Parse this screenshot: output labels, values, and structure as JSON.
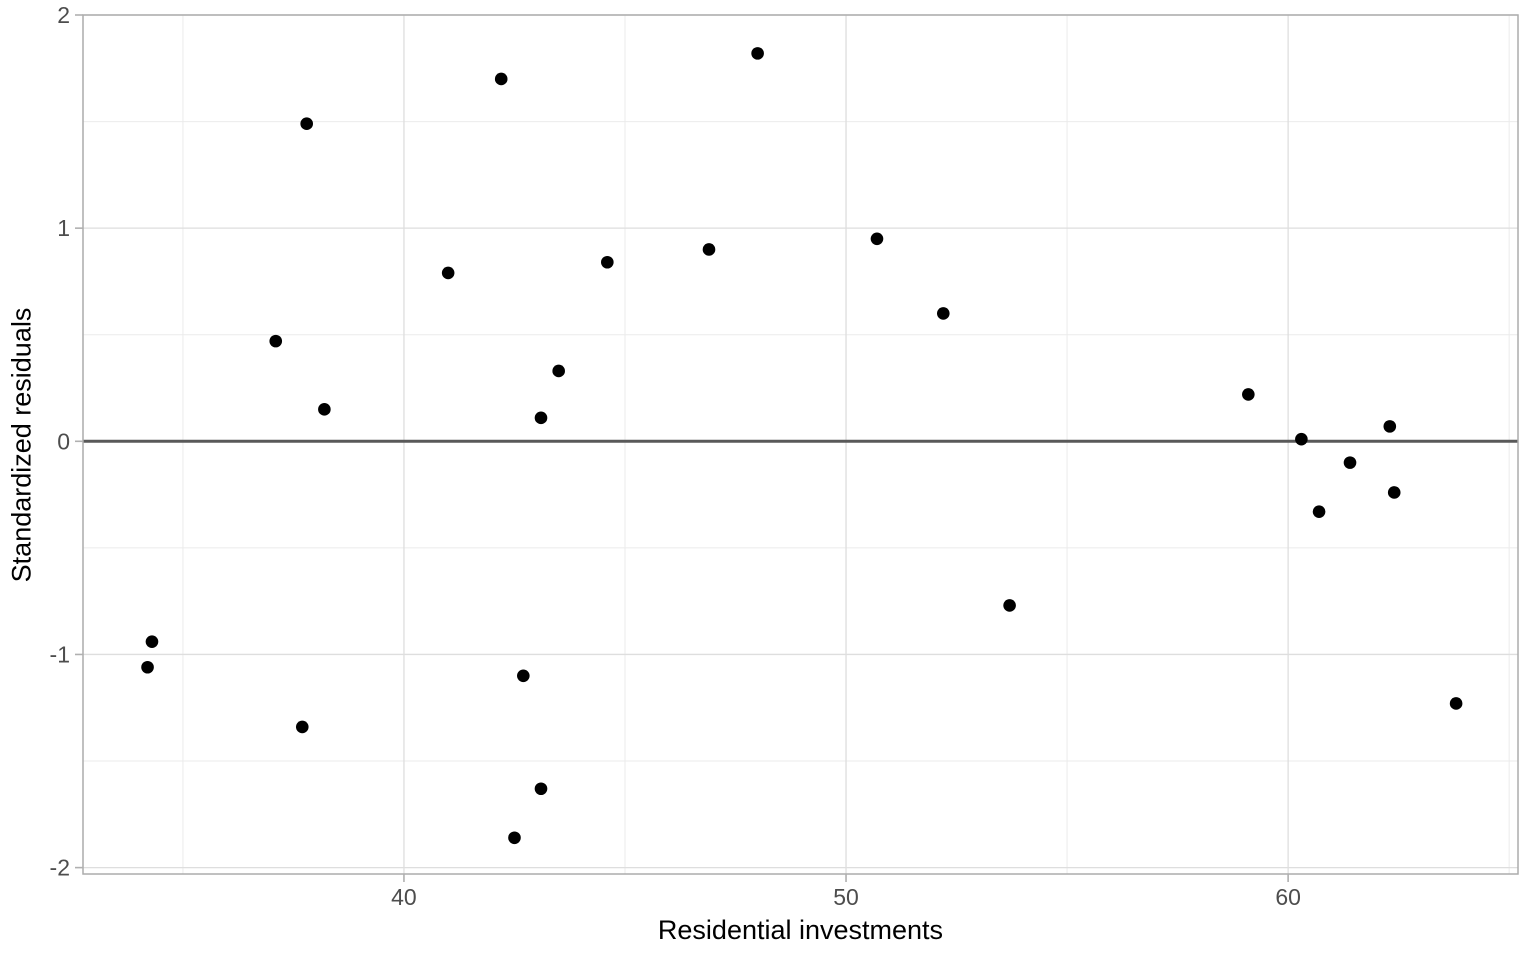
{
  "chart_data": {
    "type": "scatter",
    "title": "",
    "xlabel": "Residential investments",
    "ylabel": "Standardized residuals",
    "xlim": [
      32.74,
      65.2
    ],
    "ylim": [
      -2.03,
      2.0
    ],
    "x_ticks": [
      40,
      50,
      60
    ],
    "x_tick_labels": [
      "40",
      "50",
      "60"
    ],
    "x_minor_ticks": [
      35,
      45,
      55,
      65
    ],
    "y_ticks": [
      2,
      1,
      0,
      -1,
      -2
    ],
    "y_tick_labels": [
      "2",
      "1",
      "0",
      "-1",
      "-2"
    ],
    "y_minor_ticks": [
      1.5,
      0.5,
      -0.5,
      -1.5
    ],
    "grid": "on",
    "legend": "none",
    "reference_line_y": 0,
    "points": [
      [
        34.2,
        -1.06
      ],
      [
        34.3,
        -0.94
      ],
      [
        37.1,
        0.47
      ],
      [
        37.7,
        -1.34
      ],
      [
        37.8,
        1.49
      ],
      [
        38.2,
        0.15
      ],
      [
        41.0,
        0.79
      ],
      [
        42.2,
        1.7
      ],
      [
        42.5,
        -1.86
      ],
      [
        42.7,
        -1.1
      ],
      [
        43.1,
        -1.63
      ],
      [
        43.1,
        0.11
      ],
      [
        43.5,
        0.33
      ],
      [
        44.6,
        0.84
      ],
      [
        46.9,
        0.9
      ],
      [
        48.0,
        1.82
      ],
      [
        50.7,
        0.95
      ],
      [
        52.2,
        0.6
      ],
      [
        53.7,
        -0.77
      ],
      [
        59.1,
        0.22
      ],
      [
        60.3,
        0.01
      ],
      [
        60.7,
        -0.33
      ],
      [
        61.4,
        -0.1
      ],
      [
        62.3,
        0.07
      ],
      [
        62.4,
        -0.24
      ],
      [
        63.8,
        -1.23
      ]
    ]
  },
  "style": {
    "background_color": "#FFFFFF",
    "point_color": "#000000",
    "reference_line_color": "#595959",
    "grid_major_color": "#DEDEDE",
    "grid_minor_color": "#EBEBEB",
    "panel_border_color": "#ACACAC",
    "tick_mark_color": "#B0B0B0",
    "tick_label_color": "#4D4D4D",
    "axis_title_color": "#000000"
  }
}
